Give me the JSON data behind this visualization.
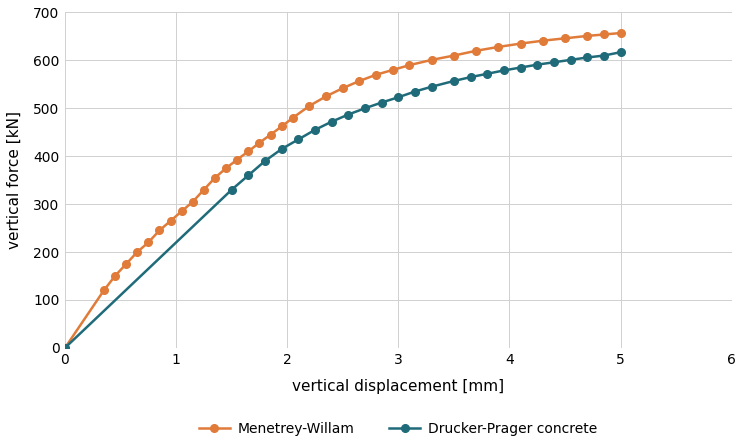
{
  "xlabel": "vertical displacement [mm]",
  "ylabel": "vertical force [kN]",
  "xlim": [
    0,
    6
  ],
  "ylim": [
    0,
    700
  ],
  "xticks": [
    0,
    1,
    2,
    3,
    4,
    5,
    6
  ],
  "yticks": [
    0,
    100,
    200,
    300,
    400,
    500,
    600,
    700
  ],
  "background_color": "#ffffff",
  "grid_color": "#d0d0d0",
  "drucker_prager": {
    "x": [
      0.0,
      1.5,
      1.65,
      1.8,
      1.95,
      2.1,
      2.25,
      2.4,
      2.55,
      2.7,
      2.85,
      3.0,
      3.15,
      3.3,
      3.5,
      3.65,
      3.8,
      3.95,
      4.1,
      4.25,
      4.4,
      4.55,
      4.7,
      4.85,
      5.0
    ],
    "y": [
      0,
      330,
      360,
      390,
      415,
      435,
      455,
      472,
      487,
      500,
      512,
      523,
      535,
      545,
      557,
      565,
      572,
      579,
      585,
      591,
      596,
      601,
      606,
      610,
      617
    ],
    "color": "#1f6b7a",
    "marker": "o",
    "markersize": 5.5,
    "linewidth": 1.8,
    "label": "Drucker-Prager concrete"
  },
  "menetrey_willam": {
    "x": [
      0.0,
      0.35,
      0.45,
      0.55,
      0.65,
      0.75,
      0.85,
      0.95,
      1.05,
      1.15,
      1.25,
      1.35,
      1.45,
      1.55,
      1.65,
      1.75,
      1.85,
      1.95,
      2.05,
      2.2,
      2.35,
      2.5,
      2.65,
      2.8,
      2.95,
      3.1,
      3.3,
      3.5,
      3.7,
      3.9,
      4.1,
      4.3,
      4.5,
      4.7,
      4.85,
      5.0
    ],
    "y": [
      0,
      120,
      150,
      175,
      200,
      220,
      245,
      265,
      285,
      305,
      330,
      355,
      375,
      393,
      410,
      428,
      445,
      462,
      480,
      505,
      525,
      542,
      557,
      570,
      580,
      590,
      601,
      610,
      620,
      628,
      635,
      641,
      646,
      651,
      654,
      657
    ],
    "color": "#e07b39",
    "marker": "o",
    "markersize": 5.5,
    "linewidth": 1.8,
    "label": "Menetrey-Willam"
  }
}
